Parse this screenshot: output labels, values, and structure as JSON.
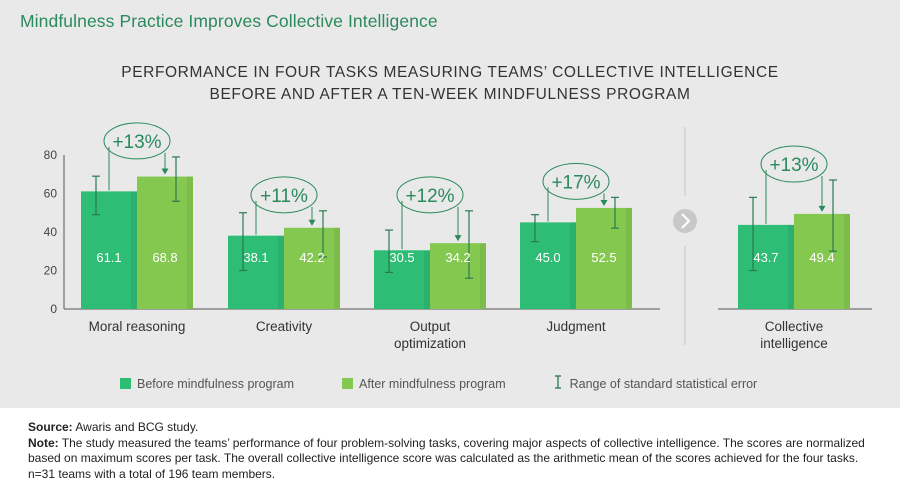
{
  "headline": "Mindfulness Practice Improves Collective Intelligence",
  "title_line1": "PERFORMANCE IN FOUR TASKS MEASURING TEAMS’ COLLECTIVE INTELLIGENCE",
  "title_line2": "BEFORE AND AFTER A TEN-WEEK MINDFULNESS PROGRAM",
  "colors": {
    "headline": "#2a8a5c",
    "before": "#2ebd74",
    "after": "#85c850",
    "error": "#2a7a50",
    "annotation": "#2a8a5c",
    "chevron": "#c8c8c8"
  },
  "legend": {
    "before": "Before mindfulness program",
    "after": "After mindfulness program",
    "error": "Range of standard statistical error"
  },
  "chart_data": {
    "type": "bar",
    "title": "PERFORMANCE IN FOUR TASKS MEASURING TEAMS’ COLLECTIVE INTELLIGENCE BEFORE AND AFTER A TEN-WEEK MINDFULNESS PROGRAM",
    "ylim": [
      0,
      80
    ],
    "yticks": [
      "0",
      "20",
      "40",
      "60",
      "80"
    ],
    "grid": false,
    "legend_position": "bottom",
    "categories": [
      "Moral reasoning",
      "Creativity",
      "Output optimization",
      "Judgment",
      "Collective intelligence"
    ],
    "category_lines": [
      [
        "Moral reasoning"
      ],
      [
        "Creativity"
      ],
      [
        "Output",
        "optimization"
      ],
      [
        "Judgment"
      ],
      [
        "Collective",
        "intelligence"
      ]
    ],
    "series": [
      {
        "name": "Before mindfulness program",
        "values": [
          61.1,
          38.1,
          30.5,
          45.0,
          43.7
        ],
        "labels": [
          "61.1",
          "38.1",
          "30.5",
          "45.0",
          "43.7"
        ],
        "error_low": [
          49,
          20,
          19,
          35,
          20
        ],
        "error_high": [
          69,
          50,
          41,
          49,
          58
        ]
      },
      {
        "name": "After mindfulness program",
        "values": [
          68.8,
          42.2,
          34.2,
          52.5,
          49.4
        ],
        "labels": [
          "68.8",
          "42.2",
          "34.2",
          "52.5",
          "49.4"
        ],
        "error_low": [
          56,
          27,
          16,
          42,
          30
        ],
        "error_high": [
          79,
          51,
          51,
          58,
          67
        ]
      }
    ],
    "annotations": [
      "+13%",
      "+11%",
      "+12%",
      "+17%",
      "+13%"
    ]
  },
  "notes": {
    "source_label": "Source:",
    "source_text": " Awaris and BCG study.",
    "note_label": "Note:",
    "note_text": " The study measured the teams’ performance of four problem-solving tasks, covering major aspects of collective intelligence. The scores are normalized based on maximum scores per task. The overall collective intelligence score was calculated as the arithmetic mean of the scores achieved for the four tasks. n=31 teams with a total of 196 team members."
  }
}
